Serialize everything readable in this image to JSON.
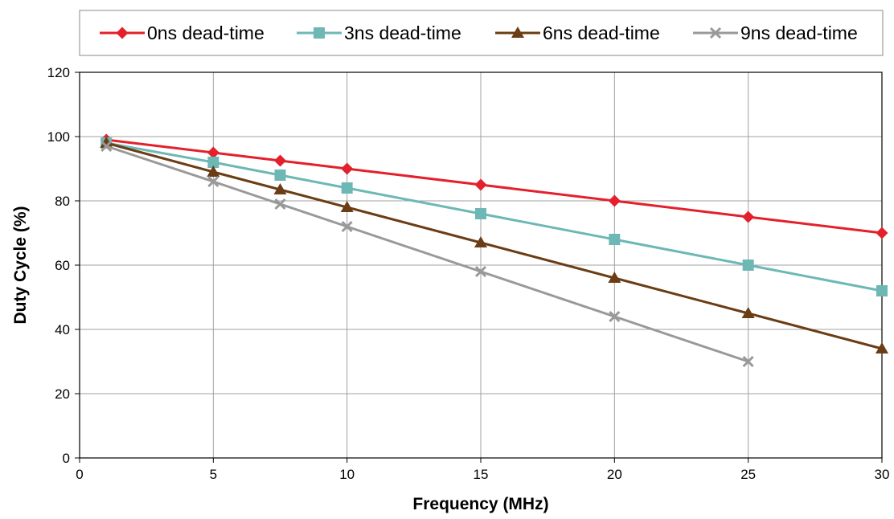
{
  "chart_data": {
    "type": "line",
    "xlabel": "Frequency (MHz)",
    "ylabel": "Duty Cycle (%)",
    "xlim": [
      0,
      30
    ],
    "ylim": [
      0,
      120
    ],
    "xticks": [
      0,
      5,
      10,
      15,
      20,
      25,
      30
    ],
    "yticks": [
      0,
      20,
      40,
      60,
      80,
      100,
      120
    ],
    "grid": true,
    "legend_position": "top",
    "series": [
      {
        "name": "0ns dead-time",
        "color": "#e3202b",
        "marker": "diamond",
        "x": [
          1,
          5,
          7.5,
          10,
          15,
          20,
          25,
          30
        ],
        "y": [
          99,
          95,
          92.5,
          90,
          85,
          80,
          75,
          70
        ]
      },
      {
        "name": "3ns dead-time",
        "color": "#6db8b5",
        "marker": "square",
        "x": [
          1,
          5,
          7.5,
          10,
          15,
          20,
          25,
          30
        ],
        "y": [
          98,
          92,
          88,
          84,
          76,
          68,
          60,
          52
        ]
      },
      {
        "name": "6ns dead-time",
        "color": "#6b3d14",
        "marker": "triangle",
        "x": [
          1,
          5,
          7.5,
          10,
          15,
          20,
          25,
          30
        ],
        "y": [
          98,
          89,
          83.5,
          78,
          67,
          56,
          45,
          34
        ]
      },
      {
        "name": "9ns dead-time",
        "color": "#999999",
        "marker": "x",
        "x": [
          1,
          5,
          7.5,
          10,
          15,
          20,
          25
        ],
        "y": [
          97,
          86,
          79,
          72,
          58,
          44,
          30
        ]
      }
    ]
  }
}
